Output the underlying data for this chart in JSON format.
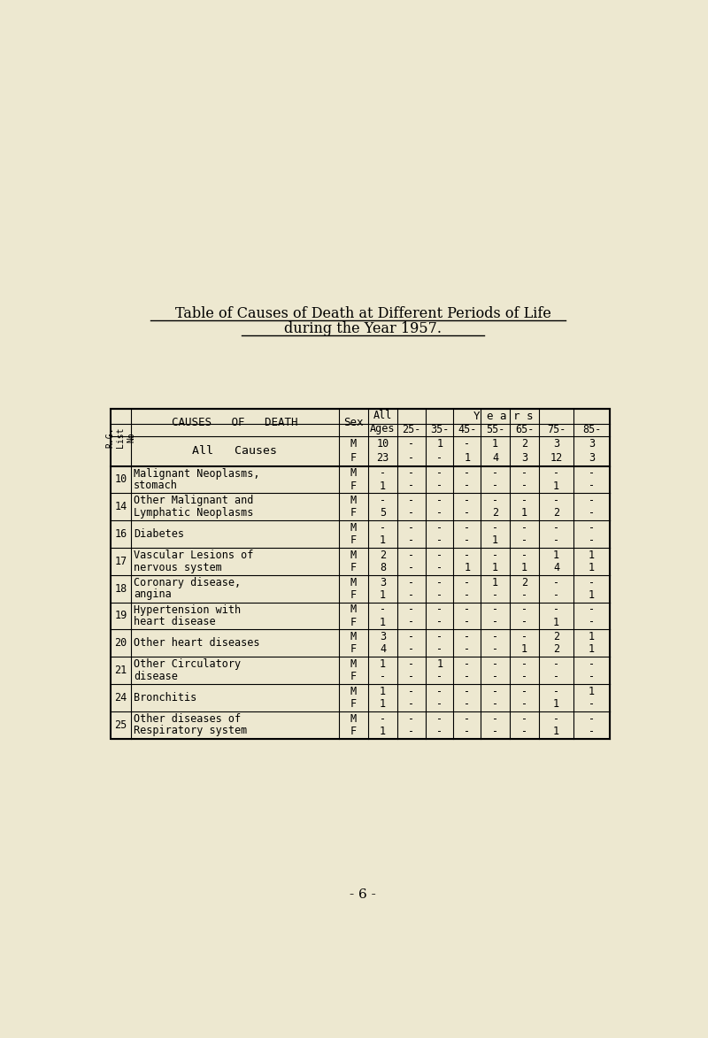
{
  "title_line1": "Table of Causes of Death at Different Periods of Life",
  "title_line2": "during the Year 1957.",
  "bg_color": "#ede8d0",
  "page_number": "- 6 -",
  "all_causes_row": {
    "cause": "All   Causes",
    "data": [
      {
        "sex": "M",
        "all_ages": "10",
        "25": "-",
        "35": "1",
        "45": "-",
        "55": "1",
        "65": "2",
        "75": "3",
        "85": "3"
      },
      {
        "sex": "F",
        "all_ages": "23",
        "25": "-",
        "35": "-",
        "45": "1",
        "55": "4",
        "65": "3",
        "75": "12",
        "85": "3"
      }
    ]
  },
  "rows": [
    {
      "list_no": "10",
      "cause_line1": "Malignant Neoplasms,",
      "cause_line2": "stomach",
      "data": [
        {
          "sex": "M",
          "all_ages": "-",
          "25": "-",
          "35": "-",
          "45": "-",
          "55": "-",
          "65": "-",
          "75": "-",
          "85": "-"
        },
        {
          "sex": "F",
          "all_ages": "1",
          "25": "-",
          "35": "-",
          "45": "-",
          "55": "-",
          "65": "-",
          "75": "1",
          "85": "-"
        }
      ]
    },
    {
      "list_no": "14",
      "cause_line1": "Other Malignant and",
      "cause_line2": "Lymphatic Neoplasms",
      "data": [
        {
          "sex": "M",
          "all_ages": "-",
          "25": "-",
          "35": "-",
          "45": "-",
          "55": "-",
          "65": "-",
          "75": "-",
          "85": "-"
        },
        {
          "sex": "F",
          "all_ages": "5",
          "25": "-",
          "35": "-",
          "45": "-",
          "55": "2",
          "65": "1",
          "75": "2",
          "85": "-"
        }
      ]
    },
    {
      "list_no": "16",
      "cause_line1": "Diabetes",
      "cause_line2": "",
      "data": [
        {
          "sex": "M",
          "all_ages": "-",
          "25": "-",
          "35": "-",
          "45": "-",
          "55": "-",
          "65": "-",
          "75": "-",
          "85": "-"
        },
        {
          "sex": "F",
          "all_ages": "1",
          "25": "-",
          "35": "-",
          "45": "-",
          "55": "1",
          "65": "-",
          "75": "-",
          "85": "-"
        }
      ]
    },
    {
      "list_no": "17",
      "cause_line1": "Vascular Lesions of",
      "cause_line2": "nervous system",
      "data": [
        {
          "sex": "M",
          "all_ages": "2",
          "25": "-",
          "35": "-",
          "45": "-",
          "55": "-",
          "65": "-",
          "75": "1",
          "85": "1"
        },
        {
          "sex": "F",
          "all_ages": "8",
          "25": "-",
          "35": "-",
          "45": "1",
          "55": "1",
          "65": "1",
          "75": "4",
          "85": "1"
        }
      ]
    },
    {
      "list_no": "18",
      "cause_line1": "Coronary disease,",
      "cause_line2": "angina",
      "data": [
        {
          "sex": "M",
          "all_ages": "3",
          "25": "-",
          "35": "-",
          "45": "-",
          "55": "1",
          "65": "2",
          "75": "-",
          "85": "-"
        },
        {
          "sex": "F",
          "all_ages": "1",
          "25": "-",
          "35": "-",
          "45": "-",
          "55": "-",
          "65": "-",
          "75": "-",
          "85": "1"
        }
      ]
    },
    {
      "list_no": "19",
      "cause_line1": "Hypertension with",
      "cause_line2": "heart disease",
      "data": [
        {
          "sex": "M",
          "all_ages": "-",
          "25": "-",
          "35": "-",
          "45": "-",
          "55": "-",
          "65": "-",
          "75": "-",
          "85": "-"
        },
        {
          "sex": "F",
          "all_ages": "1",
          "25": "-",
          "35": "-",
          "45": "-",
          "55": "-",
          "65": "-",
          "75": "1",
          "85": "-"
        }
      ]
    },
    {
      "list_no": "20",
      "cause_line1": "Other heart diseases",
      "cause_line2": "",
      "data": [
        {
          "sex": "M",
          "all_ages": "3",
          "25": "-",
          "35": "-",
          "45": "-",
          "55": "-",
          "65": "-",
          "75": "2",
          "85": "1"
        },
        {
          "sex": "F",
          "all_ages": "4",
          "25": "-",
          "35": "-",
          "45": "-",
          "55": "-",
          "65": "1",
          "75": "2",
          "85": "1"
        }
      ]
    },
    {
      "list_no": "21",
      "cause_line1": "Other Circulatory",
      "cause_line2": "disease",
      "data": [
        {
          "sex": "M",
          "all_ages": "1",
          "25": "-",
          "35": "1",
          "45": "-",
          "55": "-",
          "65": "-",
          "75": "-",
          "85": "-"
        },
        {
          "sex": "F",
          "all_ages": "-",
          "25": "-",
          "35": "-",
          "45": "-",
          "55": "-",
          "65": "-",
          "75": "-",
          "85": "-"
        }
      ]
    },
    {
      "list_no": "24",
      "cause_line1": "Bronchitis",
      "cause_line2": "",
      "data": [
        {
          "sex": "M",
          "all_ages": "1",
          "25": "-",
          "35": "-",
          "45": "-",
          "55": "-",
          "65": "-",
          "75": "-",
          "85": "1"
        },
        {
          "sex": "F",
          "all_ages": "1",
          "25": "-",
          "35": "-",
          "45": "-",
          "55": "-",
          "65": "-",
          "75": "1",
          "85": "-"
        }
      ]
    },
    {
      "list_no": "25",
      "cause_line1": "Other diseases of",
      "cause_line2": "Respiratory system",
      "data": [
        {
          "sex": "M",
          "all_ages": "-",
          "25": "-",
          "35": "-",
          "45": "-",
          "55": "-",
          "65": "-",
          "75": "-",
          "85": "-"
        },
        {
          "sex": "F",
          "all_ages": "1",
          "25": "-",
          "35": "-",
          "45": "-",
          "55": "-",
          "65": "-",
          "75": "1",
          "85": "-"
        }
      ]
    }
  ]
}
